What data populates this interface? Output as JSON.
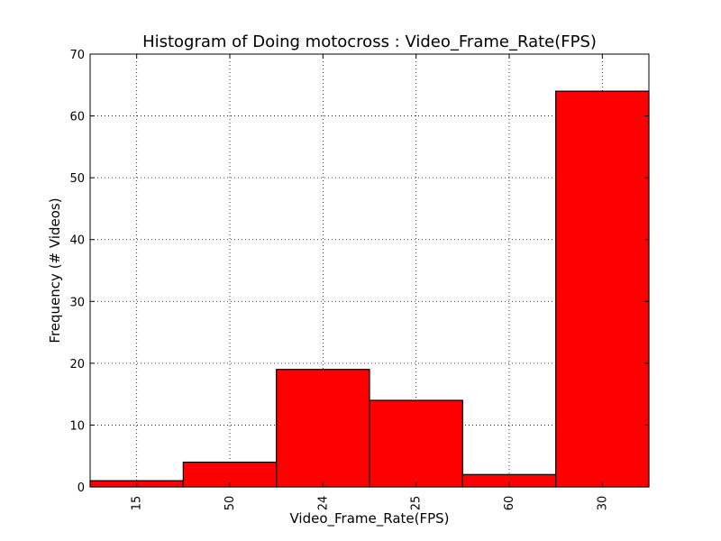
{
  "chart_data": {
    "type": "bar",
    "title": "Histogram of Doing motocross : Video_Frame_Rate(FPS)",
    "xlabel": "Video_Frame_Rate(FPS)",
    "ylabel": "Frequency (# Videos)",
    "categories": [
      "15",
      "50",
      "24",
      "25",
      "60",
      "30"
    ],
    "values": [
      1,
      4,
      19,
      14,
      2,
      64
    ],
    "ylim": [
      0,
      70
    ],
    "yticks": [
      0,
      10,
      20,
      30,
      40,
      50,
      60,
      70
    ],
    "grid": true,
    "bar_color": "#ff0000",
    "edge_color": "#000000"
  }
}
